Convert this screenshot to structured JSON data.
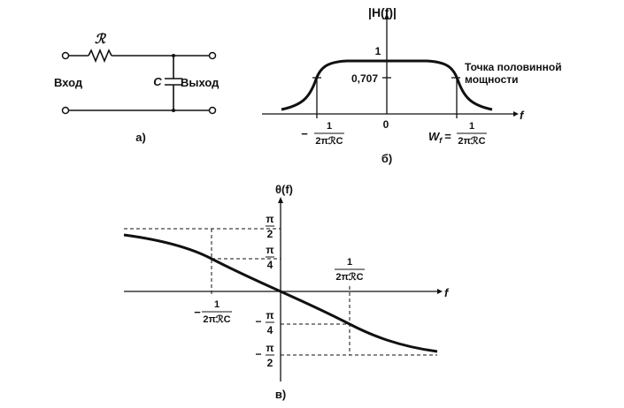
{
  "circuit": {
    "resistor_label": "ℛ",
    "capacitor_label": "C",
    "input_label": "Вход",
    "output_label": "Выход",
    "caption": "а)"
  },
  "magnitude_plot": {
    "y_axis_label": "|H(f)|",
    "x_axis_label": "f",
    "level_1": "1",
    "level_0707": "0,707",
    "origin_label": "0",
    "half_power_line1": "Точка половинной",
    "half_power_line2": "мощности",
    "neg_minus": "−",
    "frac_num": "1",
    "frac_den": "2πℛC",
    "wf_label": "W",
    "wf_sub": "f",
    "wf_eq": "=",
    "caption": "б)"
  },
  "phase_plot": {
    "y_axis_label": "θ(f)",
    "x_axis_label": "f",
    "pi": "π",
    "two": "2",
    "four": "4",
    "minus": "−",
    "frac_num": "1",
    "frac_den": "2πℛC",
    "caption": "в)"
  }
}
